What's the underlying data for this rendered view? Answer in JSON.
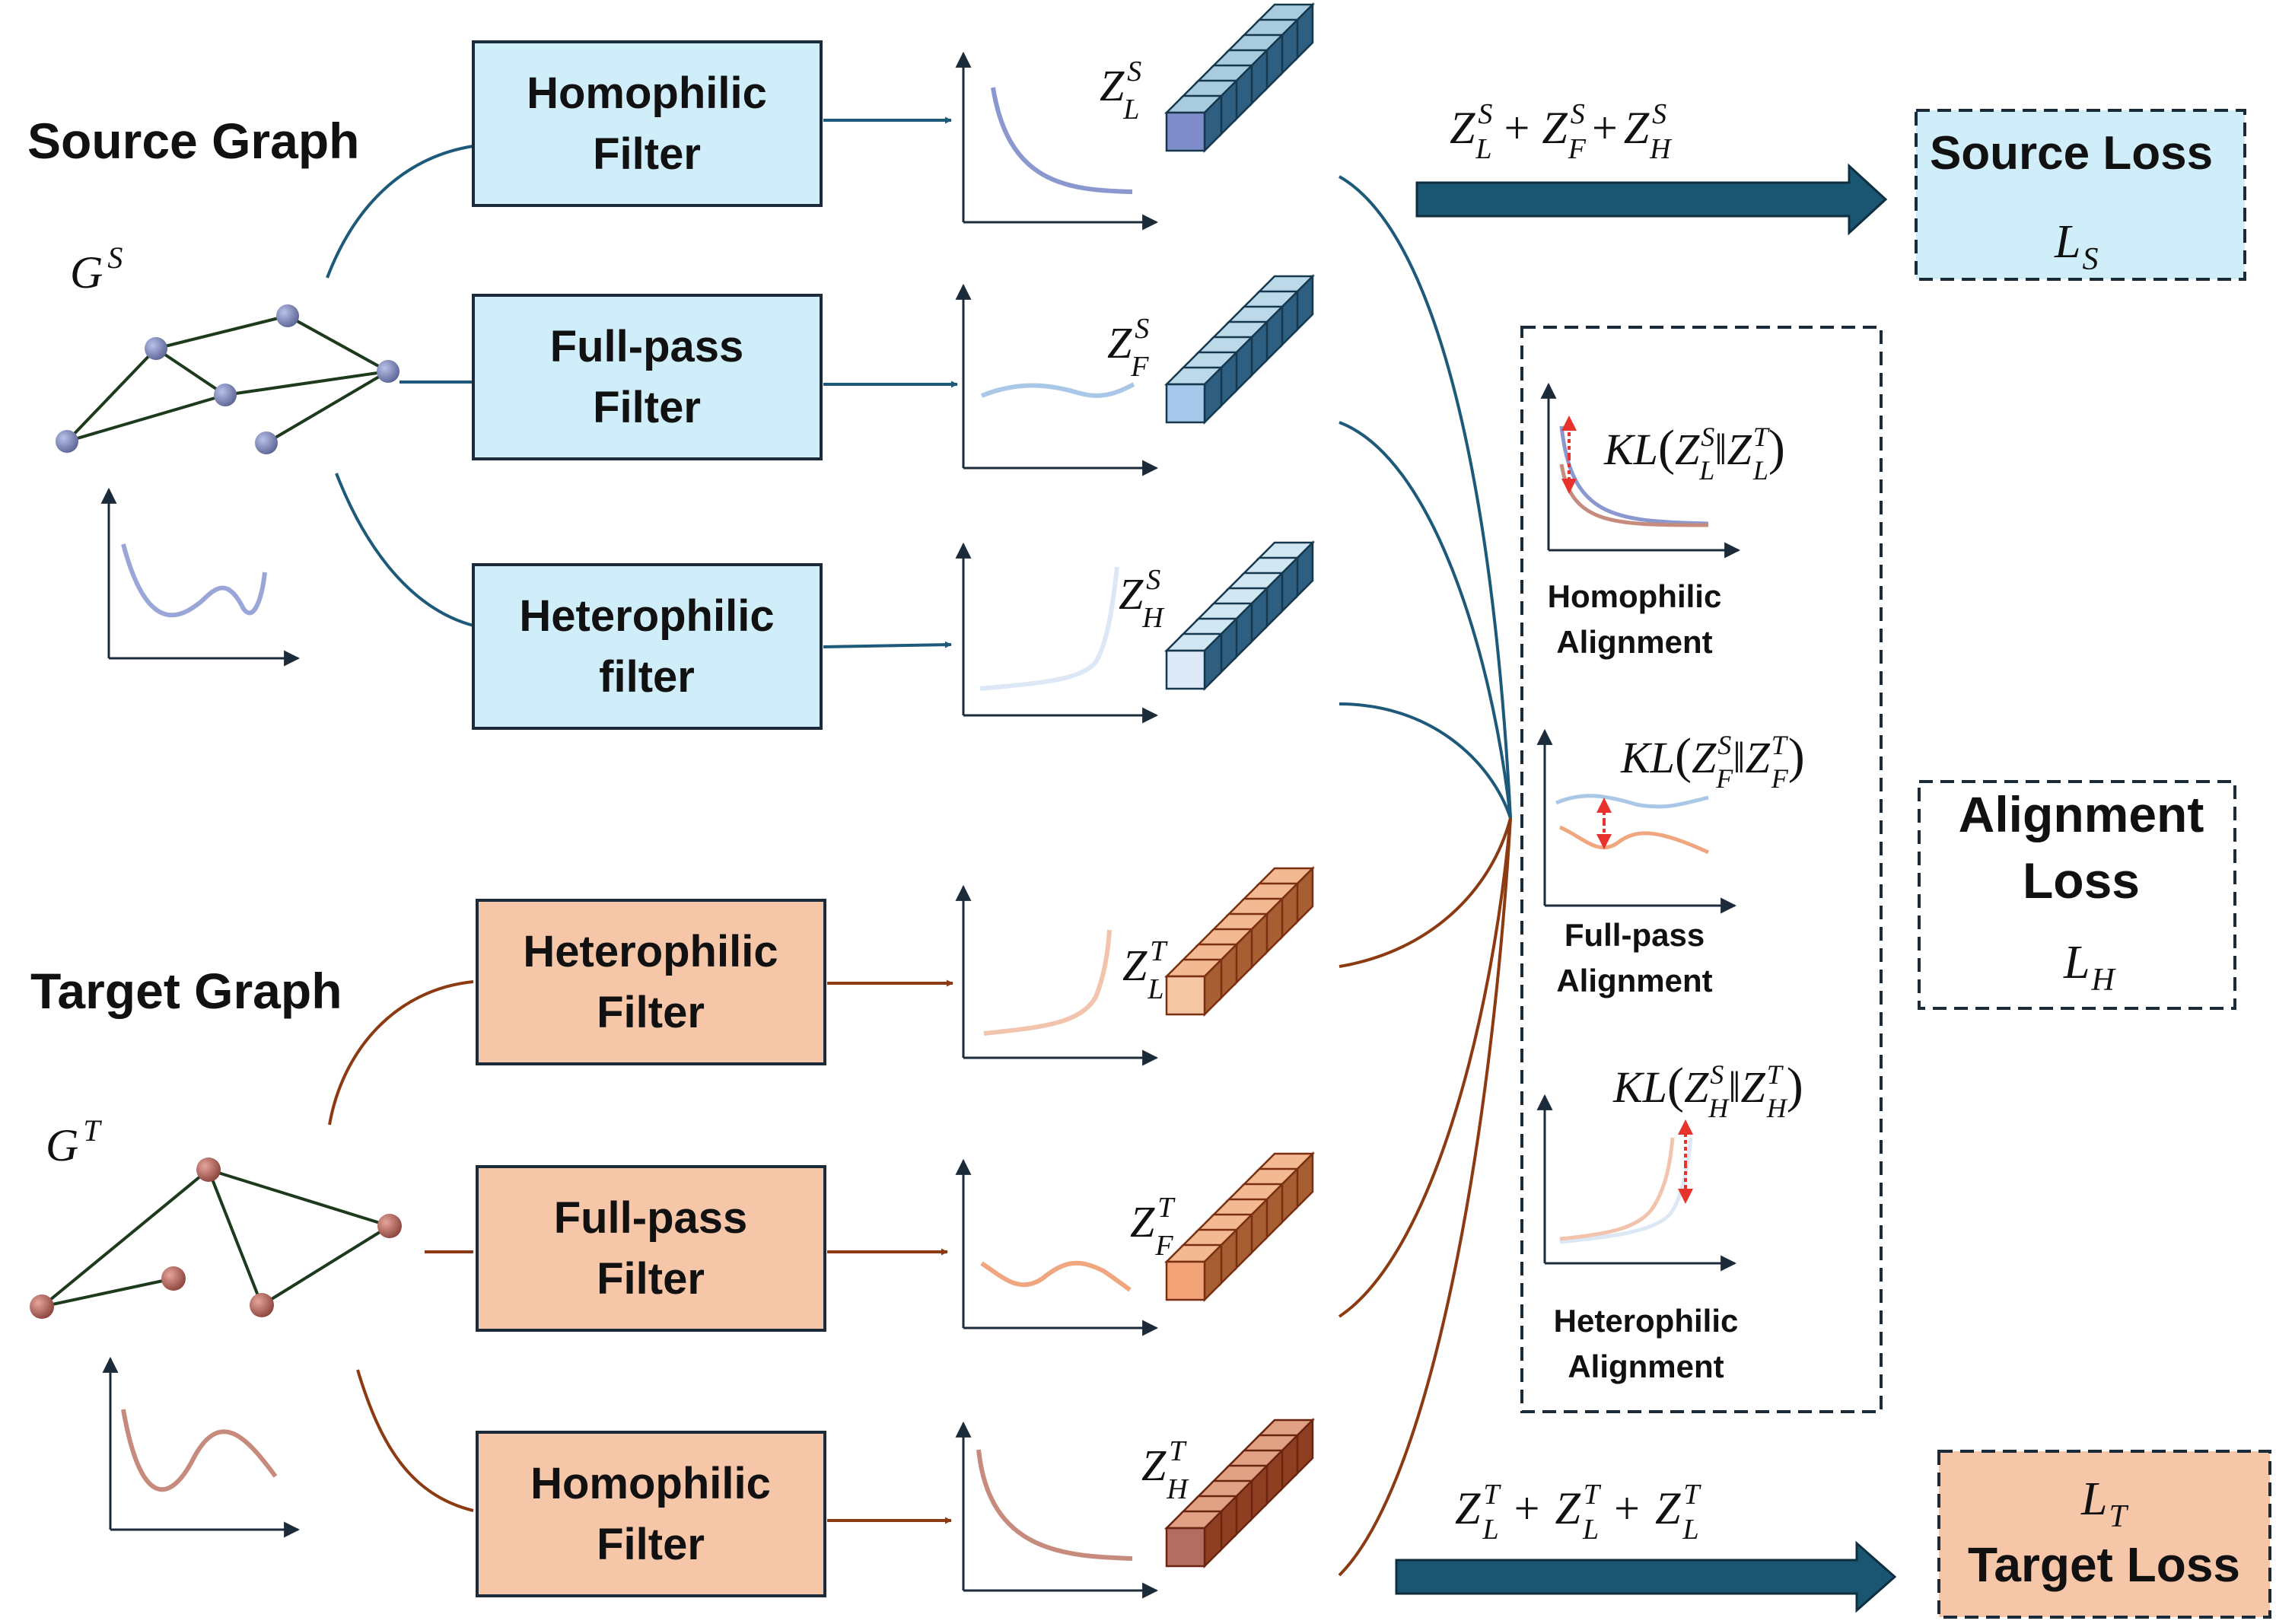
{
  "colors": {
    "source_fill": "#cfeef9",
    "target_fill": "#f6c6a8",
    "source_line": "#1d5a7a",
    "target_line": "#8b3a12",
    "arrow_fill": "#1a5572",
    "graph_edge": "#1d3a1d",
    "source_node": "#7b86b8",
    "target_node": "#b9675e",
    "alignment_marker": "#e8322b"
  },
  "source": {
    "title": "Source Graph",
    "graph_label": {
      "base": "G",
      "sup": "S"
    },
    "filters": [
      {
        "line1": "Homophilic",
        "line2": "Filter"
      },
      {
        "line1": "Full-pass",
        "line2": "Filter"
      },
      {
        "line1": "Heterophilic",
        "line2": "filter"
      }
    ],
    "embeddings": [
      {
        "base": "Z",
        "sup": "S",
        "sub": "L"
      },
      {
        "base": "Z",
        "sup": "S",
        "sub": "F"
      },
      {
        "base": "Z",
        "sup": "S",
        "sub": "H"
      }
    ],
    "sum_terms": [
      {
        "base": "Z",
        "sup": "S",
        "sub": "L"
      },
      {
        "base": "Z",
        "sup": "S",
        "sub": "F"
      },
      {
        "base": "Z",
        "sup": "S",
        "sub": "H"
      }
    ],
    "loss": {
      "label": "Source Loss",
      "symbol_base": "L",
      "symbol_sub": "S"
    }
  },
  "target": {
    "title": "Target Graph",
    "graph_label": {
      "base": "G",
      "sup": "T"
    },
    "filters": [
      {
        "line1": "Heterophilic",
        "line2": "Filter"
      },
      {
        "line1": "Full-pass",
        "line2": "Filter"
      },
      {
        "line1": "Homophilic",
        "line2": "Filter"
      }
    ],
    "embeddings": [
      {
        "base": "Z",
        "sup": "T",
        "sub": "L"
      },
      {
        "base": "Z",
        "sup": "T",
        "sub": "F"
      },
      {
        "base": "Z",
        "sup": "T",
        "sub": "H"
      }
    ],
    "sum_terms": [
      {
        "base": "Z",
        "sup": "T",
        "sub": "L"
      },
      {
        "base": "Z",
        "sup": "T",
        "sub": "L"
      },
      {
        "base": "Z",
        "sup": "T",
        "sub": "L"
      }
    ],
    "loss": {
      "label": "Target Loss",
      "symbol_base": "L",
      "symbol_sub": "T"
    }
  },
  "alignment": {
    "panels": [
      {
        "kl": "KL",
        "sub": "L",
        "caption1": "Homophilic",
        "caption2": "Alignment"
      },
      {
        "kl": "KL",
        "sub": "F",
        "caption1": "Full-pass",
        "caption2": "Alignment"
      },
      {
        "kl": "KL",
        "sub": "H",
        "caption1": "Heterophilic",
        "caption2": "Alignment"
      }
    ],
    "loss": {
      "line1": "Alignment",
      "line2": "Loss",
      "symbol_base": "L",
      "symbol_sub": "H"
    }
  },
  "plus": "+",
  "parallel": "‖"
}
